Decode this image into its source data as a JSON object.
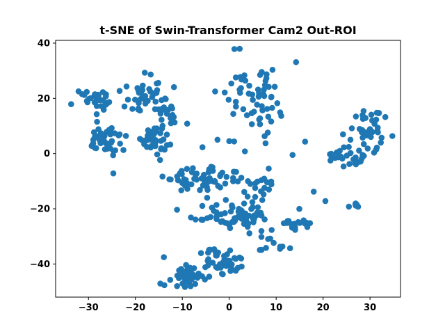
{
  "chart_data": {
    "type": "scatter",
    "title": "t-SNE of Swin-Transformer Cam2 Out-ROI",
    "xlabel": "",
    "ylabel": "",
    "xlim": [
      -37,
      36.5
    ],
    "ylim": [
      -52,
      41
    ],
    "xticks": [
      -30,
      -20,
      -10,
      0,
      10,
      20,
      30
    ],
    "yticks": [
      -40,
      -20,
      0,
      20,
      40
    ],
    "grid": false,
    "legend": "none",
    "color": "#1f77b4",
    "clusters": [
      {
        "cx": -29,
        "cy": 18.5,
        "sx": 1.6,
        "sy": 2.4,
        "n": 30
      },
      {
        "cx": -26.5,
        "cy": 5,
        "sx": 2.0,
        "sy": 3.2,
        "n": 42
      },
      {
        "cx": -17.5,
        "cy": 20,
        "sx": 2.2,
        "sy": 3.0,
        "n": 45
      },
      {
        "cx": -12.5,
        "cy": 13,
        "sx": 1.2,
        "sy": 1.6,
        "n": 14
      },
      {
        "cx": -16,
        "cy": 5,
        "sx": 1.8,
        "sy": 2.5,
        "n": 36
      },
      {
        "cx": 6.5,
        "cy": 20,
        "sx": 4.0,
        "sy": 7.0,
        "n": 62
      },
      {
        "cx": 30,
        "cy": 9,
        "sx": 1.9,
        "sy": 4.8,
        "n": 48
      },
      {
        "cx": 21.5,
        "cy": 0,
        "sx": 1.1,
        "sy": 1.0,
        "n": 14
      },
      {
        "cx": 26,
        "cy": -2,
        "sx": 1.8,
        "sy": 1.6,
        "n": 18
      },
      {
        "cx": -5,
        "cy": -9.5,
        "sx": 3.5,
        "sy": 2.0,
        "n": 60
      },
      {
        "cx": 7,
        "cy": -13,
        "sx": 2.0,
        "sy": 3.0,
        "n": 22
      },
      {
        "cx": 2.5,
        "cy": -23,
        "sx": 4.5,
        "sy": 2.2,
        "n": 65
      },
      {
        "cx": 13.5,
        "cy": -26,
        "sx": 1.5,
        "sy": 1.0,
        "n": 22
      },
      {
        "cx": 8.5,
        "cy": -32,
        "sx": 2.0,
        "sy": 1.8,
        "n": 14
      },
      {
        "cx": -9,
        "cy": -44,
        "sx": 2.1,
        "sy": 2.0,
        "n": 48
      },
      {
        "cx": -0.5,
        "cy": -40.5,
        "sx": 2.1,
        "sy": 2.0,
        "n": 36
      },
      {
        "cx": 27,
        "cy": -18.5,
        "sx": 0.7,
        "sy": 0.6,
        "n": 5
      },
      {
        "cx": -4,
        "cy": -35,
        "sx": 1.5,
        "sy": 1.5,
        "n": 8
      }
    ],
    "points": [
      [
        -33.7,
        17.9
      ],
      [
        -24.7,
        -7.2
      ],
      [
        -10.5,
        -7.2
      ],
      [
        -5.7,
        2.3
      ],
      [
        18.0,
        -13.8
      ],
      [
        20.5,
        -17.2
      ],
      [
        25.5,
        -19.2
      ],
      [
        23.0,
        -1.0
      ],
      [
        -2.5,
        5.0
      ],
      [
        0.0,
        4.5
      ],
      [
        13.5,
        -0.5
      ],
      [
        -3.0,
        22.5
      ]
    ]
  }
}
